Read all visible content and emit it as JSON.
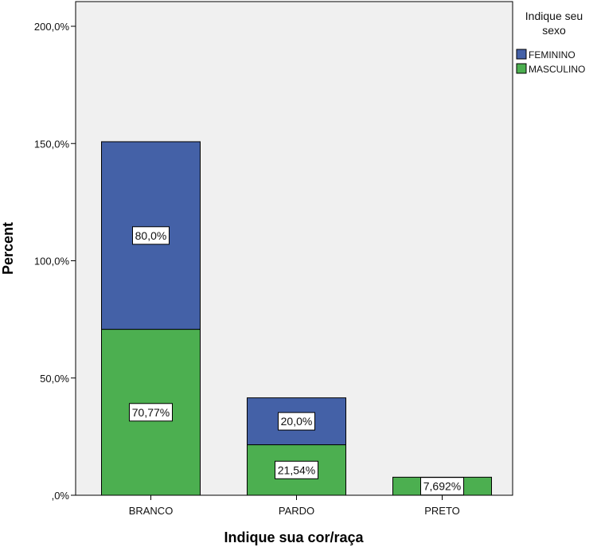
{
  "chart_data": {
    "type": "bar",
    "stacked": true,
    "categories": [
      "BRANCO",
      "PARDO",
      "PRETO"
    ],
    "series": [
      {
        "name": "MASCULINO",
        "color": "#4caf50",
        "values": [
          70.77,
          21.54,
          7.692
        ],
        "labels": [
          "70,77%",
          "21,54%",
          "7,692%"
        ]
      },
      {
        "name": "FEMININO",
        "color": "#4461a7",
        "values": [
          80.0,
          20.0,
          0
        ],
        "labels": [
          "80,0%",
          "20,0%",
          ""
        ]
      }
    ],
    "ylabel": "Percent",
    "xlabel": "Indique sua cor/raça",
    "ylim": [
      0,
      200
    ],
    "yticks": [
      0,
      50,
      100,
      150,
      200
    ],
    "ytick_labels": [
      ",0%",
      "50,0%",
      "100,0%",
      "150,0%",
      "200,0%"
    ],
    "legend": {
      "title_lines": [
        "Indique seu",
        "sexo"
      ],
      "placement": "top-right",
      "items": [
        {
          "label": "FEMININO",
          "color": "#4461a7"
        },
        {
          "label": "MASCULINO",
          "color": "#4caf50"
        }
      ]
    },
    "grid": false,
    "plot_background": "#f0f0f0"
  }
}
